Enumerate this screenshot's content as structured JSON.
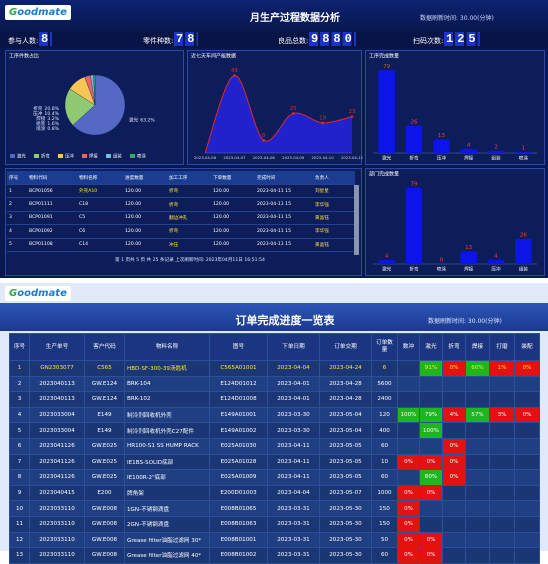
{
  "dashboard": {
    "logo": "Goodmate",
    "title": "月生产过程数据分析",
    "refresh": "数据刷新时间: 30.00(分钟)",
    "stats": [
      {
        "label": "参与人数:",
        "value": 8
      },
      {
        "label": "零件种数:",
        "value": 78
      },
      {
        "label": "良品总数:",
        "value": 9880
      },
      {
        "label": "扫码次数:",
        "value": 125
      }
    ]
  },
  "chart_data": [
    {
      "type": "pie",
      "title": "工序件数占比",
      "categories": [
        "激光",
        "折弯",
        "压冲",
        "焊接",
        "组装",
        "喷涂"
      ],
      "values": [
        63.2,
        20.8,
        10.4,
        3.2,
        1.6,
        0.8
      ],
      "value_labels": [
        "63.2%",
        "20.8%",
        "10.4%",
        "3.2%",
        "1.6%",
        "0.8%"
      ],
      "colors": [
        "#5468c4",
        "#8fca72",
        "#f6c654",
        "#e86565",
        "#72bedc",
        "#3aa56f"
      ]
    },
    {
      "type": "area",
      "title": "近七天车间产能数据",
      "categories": [
        "2023-04-06",
        "2023-04-07",
        "2023-04-08",
        "2023-04-09",
        "2023-04-10",
        "2023-04-11"
      ],
      "values": [
        0,
        49,
        8,
        25,
        19,
        23
      ],
      "ylim": [
        0,
        55
      ],
      "color": "#e02828",
      "fill": "#2222cc"
    },
    {
      "type": "bar",
      "title": "工序完成数量",
      "categories": [
        "激光",
        "折弯",
        "压冲",
        "焊接",
        "组装",
        "喷涂"
      ],
      "values": [
        79,
        26,
        13,
        4,
        2,
        1
      ],
      "ylim": [
        0,
        85
      ],
      "color": "#0c14e8"
    },
    {
      "type": "bar",
      "title": "部门完成数量",
      "categories": [
        "激光",
        "折弯",
        "喷涂",
        "焊接",
        "压冲",
        "组装"
      ],
      "values": [
        4,
        79,
        0,
        13,
        4,
        26
      ],
      "ylim": [
        0,
        85
      ],
      "color": "#0c14e8"
    }
  ],
  "material_table": {
    "columns": [
      "序号",
      "物料代码",
      "物料名称",
      "进度数量",
      "加工工序",
      "下单数量",
      "完成时间",
      "负责人"
    ],
    "rows": [
      [
        "1",
        "BCP01056",
        "外壳A10",
        "120.00",
        "折弯",
        "120.00",
        "2023-04-11 15",
        "刘星星"
      ],
      [
        "2",
        "BCP01111",
        "C18",
        "120.00",
        "折弯",
        "120.00",
        "2023-04-11 15",
        "李华强"
      ],
      [
        "3",
        "BCP01091",
        "C5",
        "120.00",
        "翻边冲孔",
        "120.00",
        "2023-04-11 15",
        "黄晶钰"
      ],
      [
        "4",
        "BCP01092",
        "C6",
        "120.00",
        "折弯",
        "120.00",
        "2023-04-11 15",
        "李华强"
      ],
      [
        "5",
        "BCP01108",
        "C14",
        "120.00",
        "冲压",
        "120.00",
        "2023-04-11 15",
        "黄晶钰"
      ]
    ],
    "footer": "第 1 页共 5 页 共 25 条记录 上次刷新时间: 2023年04月11日 16:51:54"
  },
  "order_board": {
    "logo": "Goodmate",
    "title": "订单完成进度一览表",
    "refresh": "数据刷新时间: 30.00(分钟)",
    "columns": [
      "序号",
      "生产单号",
      "客户代码",
      "物料名称",
      "图号",
      "下单日期",
      "订单交期",
      "订单数量",
      "数冲",
      "激光",
      "折弯",
      "焊接",
      "打磨",
      "装配"
    ],
    "rows": [
      {
        "highlight": true,
        "cells": [
          "1",
          "GN2303077",
          "C565",
          "HBD-SF-300-39汤匙机",
          "C565A01001",
          "2023-04-04",
          "2023-04-24",
          "6"
        ],
        "progress": [
          null,
          {
            "text": "91%",
            "color": "#1fb51f"
          },
          {
            "text": "0%",
            "color": "#e31212"
          },
          {
            "text": "60%",
            "color": "#1fb51f"
          },
          {
            "text": "1%",
            "color": "#e31212"
          },
          {
            "text": "0%",
            "color": "#e31212"
          }
        ]
      },
      {
        "cells": [
          "2",
          "2023040113",
          "GW.E124",
          "BRK-104",
          "E124D01012",
          "2023-04-01",
          "2023-04-28",
          "5600"
        ],
        "progress": [
          null,
          null,
          null,
          null,
          null,
          null
        ]
      },
      {
        "cells": [
          "3",
          "2023040113",
          "GW.E124",
          "BRK-102",
          "E124D01008",
          "2023-04-01",
          "2023-04-28",
          "2400"
        ],
        "progress": [
          null,
          null,
          null,
          null,
          null,
          null
        ]
      },
      {
        "cells": [
          "4",
          "2023033004",
          "E149",
          "制冷剂回收机外壳",
          "E149A01001",
          "2023-03-30",
          "2023-05-04",
          "120"
        ],
        "progress": [
          {
            "text": "100%",
            "color": "#1fb51f"
          },
          {
            "text": "79%",
            "color": "#1fb51f"
          },
          {
            "text": "4%",
            "color": "#e31212"
          },
          {
            "text": "57%",
            "color": "#1fb51f"
          },
          {
            "text": "3%",
            "color": "#e31212"
          },
          {
            "text": "0%",
            "color": "#e31212"
          }
        ]
      },
      {
        "cells": [
          "5",
          "2023033004",
          "E149",
          "制冷剂回收机外壳C27配件",
          "E149A01002",
          "2023-03-30",
          "2023-05-04",
          "400"
        ],
        "progress": [
          null,
          {
            "text": "100%",
            "color": "#1fb51f"
          },
          null,
          null,
          null,
          null
        ]
      },
      {
        "cells": [
          "6",
          "2023041126",
          "GW.E025",
          "HR100-S1 SS HUMP RACK",
          "E025A01030",
          "2023-04-11",
          "2023-05-05",
          "60"
        ],
        "progress": [
          null,
          null,
          {
            "text": "0%",
            "color": "#e31212"
          },
          null,
          null,
          null
        ]
      },
      {
        "cells": [
          "7",
          "2023041126",
          "GW.E025",
          "IE1BS-SOLID底部",
          "E025A01028",
          "2023-04-11",
          "2023-05-05",
          "10"
        ],
        "progress": [
          {
            "text": "0%",
            "color": "#e31212"
          },
          {
            "text": "0%",
            "color": "#e31212"
          },
          {
            "text": "0%",
            "color": "#e31212"
          },
          null,
          null,
          null
        ]
      },
      {
        "cells": [
          "8",
          "2023041126",
          "GW.E025",
          "IE100R-2\"底部",
          "E025A01009",
          "2023-04-11",
          "2023-05-05",
          "60"
        ],
        "progress": [
          null,
          {
            "text": "80%",
            "color": "#1fb51f"
          },
          {
            "text": "0%",
            "color": "#e31212"
          },
          null,
          null,
          null
        ]
      },
      {
        "cells": [
          "9",
          "2023040415",
          "E200",
          "牌角架",
          "E200D01003",
          "2023-04-04",
          "2023-05-07",
          "1000"
        ],
        "progress": [
          {
            "text": "0%",
            "color": "#e31212"
          },
          {
            "text": "0%",
            "color": "#e31212"
          },
          null,
          null,
          null,
          null
        ]
      },
      {
        "cells": [
          "10",
          "2023033110",
          "GW.E008",
          "1GN-不锈钢滴盘",
          "E008B01065",
          "2023-03-31",
          "2023-05-30",
          "150"
        ],
        "progress": [
          {
            "text": "0%",
            "color": "#e31212"
          },
          null,
          null,
          null,
          null,
          null
        ]
      },
      {
        "cells": [
          "11",
          "2023033110",
          "GW.E008",
          "2GN-不锈钢滴盘",
          "E008B01063",
          "2023-03-31",
          "2023-05-30",
          "150"
        ],
        "progress": [
          {
            "text": "0%",
            "color": "#e31212"
          },
          null,
          null,
          null,
          null,
          null
        ]
      },
      {
        "cells": [
          "12",
          "2023033110",
          "GW.E008",
          "Grease filter油脂过滤网 30*",
          "E008B01001",
          "2023-03-31",
          "2023-05-30",
          "50"
        ],
        "progress": [
          {
            "text": "0%",
            "color": "#e31212"
          },
          {
            "text": "0%",
            "color": "#e31212"
          },
          null,
          null,
          null,
          null
        ]
      },
      {
        "cells": [
          "13",
          "2023033110",
          "GW.E008",
          "Grease filter油脂过滤网 40*",
          "E008B01002",
          "2023-03-31",
          "2023-05-30",
          "60"
        ],
        "progress": [
          {
            "text": "0%",
            "color": "#e31212"
          },
          {
            "text": "0%",
            "color": "#e31212"
          },
          null,
          null,
          null,
          null
        ]
      }
    ]
  }
}
